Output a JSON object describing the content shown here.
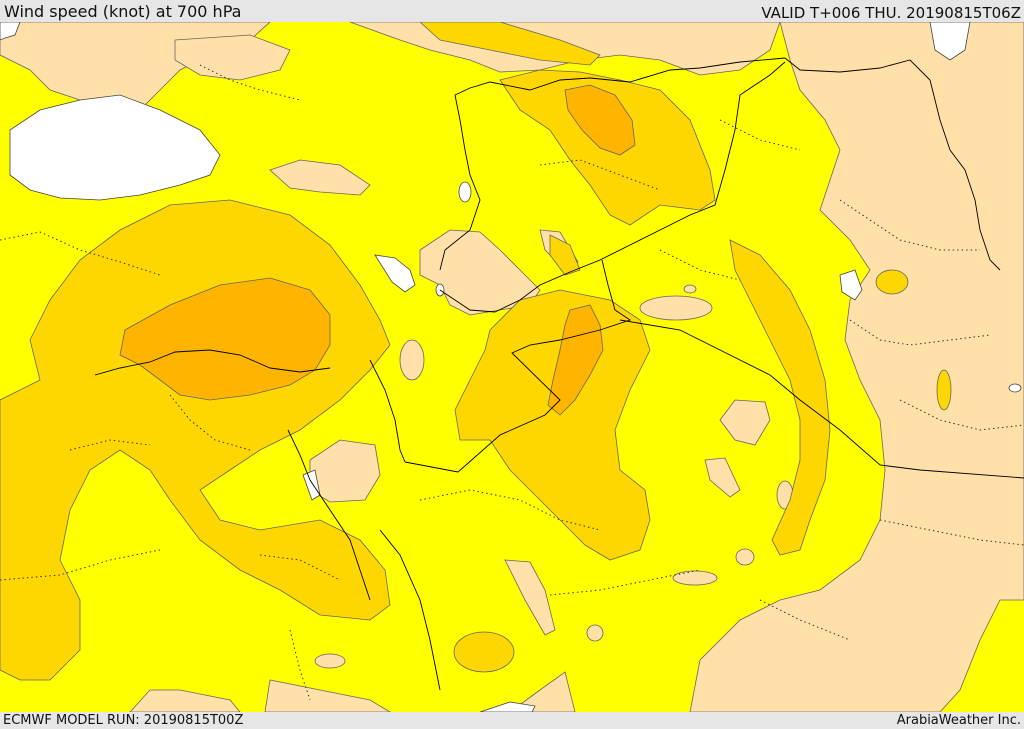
{
  "header": {
    "title": "Wind speed (knot) at 700 hPa",
    "valid": "VALID T+006 THU. 20190815T06Z"
  },
  "footer": {
    "model_run": "ECMWF MODEL RUN: 20190815T00Z",
    "brand": "ArabiaWeather Inc."
  },
  "colors": {
    "water": "#ffffff",
    "band_low": "#ffe0a8",
    "band_mid": "#ffff00",
    "band_high": "#ffd700",
    "band_higher": "#ffb400",
    "border": "#000000",
    "outline": "#555555"
  }
}
